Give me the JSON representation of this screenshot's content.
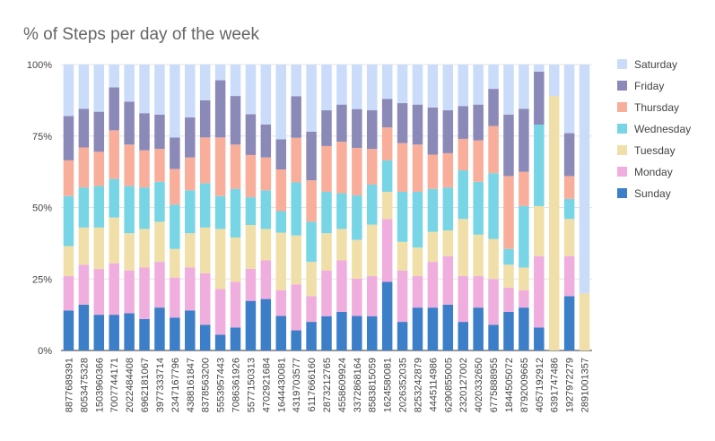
{
  "chart_data": {
    "type": "bar",
    "stacked": "percent",
    "title": "% of Steps per day of the week",
    "xlabel": "",
    "ylabel": "",
    "ylim": [
      0,
      100
    ],
    "yticks": [
      "0%",
      "25%",
      "50%",
      "75%",
      "100%"
    ],
    "grid": true,
    "legend_position": "right",
    "categories": [
      "8877689391",
      "8053475328",
      "1503960366",
      "7007744171",
      "2022484408",
      "6962181067",
      "3977333714",
      "2347167796",
      "4388161847",
      "8378563200",
      "5553957443",
      "7086361926",
      "5577150313",
      "4702921684",
      "1644430081",
      "4319703577",
      "6117666160",
      "2873212765",
      "4558609924",
      "3372868164",
      "8583815059",
      "1624580081",
      "2026352035",
      "8253242879",
      "4445114986",
      "6290855005",
      "2320127002",
      "4020332650",
      "6775888955",
      "1844505072",
      "8792009665",
      "4057192912",
      "6391747486",
      "1927972279",
      "2891001357"
    ],
    "series": [
      {
        "name": "Sunday",
        "color": "#3d7ec8",
        "values": [
          14,
          16,
          12.5,
          12.5,
          13,
          11,
          15,
          11.5,
          14,
          9,
          5.5,
          8,
          17,
          18,
          12,
          7,
          10,
          12,
          13.5,
          12,
          12,
          24,
          10,
          15,
          15,
          16,
          10,
          15,
          9,
          13.5,
          15,
          8,
          0,
          19,
          0
        ]
      },
      {
        "name": "Monday",
        "color": "#f0aede",
        "values": [
          12,
          14,
          16,
          18,
          15,
          18,
          16,
          14,
          15,
          18,
          16,
          16,
          11,
          13.5,
          9,
          16,
          9,
          16,
          18,
          13,
          14,
          22,
          18,
          11,
          16,
          17,
          16,
          11,
          16,
          8.5,
          6,
          25,
          0,
          14,
          0
        ]
      },
      {
        "name": "Tuesday",
        "color": "#f0dfa8",
        "values": [
          10.5,
          13,
          14.5,
          16,
          13,
          13.5,
          14,
          10,
          12,
          16,
          21,
          15.5,
          15,
          11,
          20,
          17,
          12,
          13,
          11,
          13.5,
          18,
          9.5,
          10,
          10,
          10.5,
          9,
          20,
          14.5,
          14,
          8,
          8,
          17.5,
          89,
          13,
          20
        ]
      },
      {
        "name": "Wednesday",
        "color": "#78d5e5",
        "values": [
          17.5,
          14,
          14.5,
          13.5,
          16.5,
          14.5,
          14,
          15.5,
          15,
          15.5,
          11.5,
          17,
          9.5,
          13.5,
          7.5,
          18.5,
          14,
          14.5,
          12.5,
          15.5,
          14,
          11,
          17.5,
          19.5,
          15,
          15,
          17,
          18.5,
          23,
          5.5,
          21.5,
          28.5,
          0,
          7,
          0
        ]
      },
      {
        "name": "Thursday",
        "color": "#f8ae9a",
        "values": [
          12.5,
          14,
          12,
          17,
          14.5,
          13,
          11.5,
          12.5,
          11.5,
          16,
          20.5,
          15.5,
          14.5,
          11.5,
          14.5,
          15.5,
          14.5,
          16,
          18,
          16.5,
          12.5,
          11.5,
          17,
          16.5,
          12,
          12,
          11,
          14.5,
          16.5,
          25.5,
          12,
          0,
          0,
          8,
          0
        ]
      },
      {
        "name": "Friday",
        "color": "#8b89b8",
        "values": [
          15.5,
          13.5,
          14,
          15,
          15,
          13,
          12,
          11,
          14,
          13,
          20,
          17,
          14,
          11.5,
          10.5,
          14.5,
          17,
          12.5,
          13,
          13.5,
          13.5,
          10,
          14,
          14,
          16.5,
          15,
          11.5,
          12.5,
          13,
          21.5,
          22,
          18.5,
          0,
          15,
          0
        ]
      },
      {
        "name": "Saturday",
        "color": "#cadcfa",
        "values": [
          18,
          15.5,
          16.5,
          8,
          13,
          17,
          17.5,
          25.5,
          18.5,
          12.5,
          5.5,
          11,
          17,
          21,
          26,
          11,
          23.5,
          16,
          14,
          15.5,
          16,
          12,
          13.5,
          14,
          15,
          16,
          14.5,
          14,
          8.5,
          17.5,
          15.5,
          2.5,
          11,
          24,
          80
        ]
      }
    ]
  }
}
